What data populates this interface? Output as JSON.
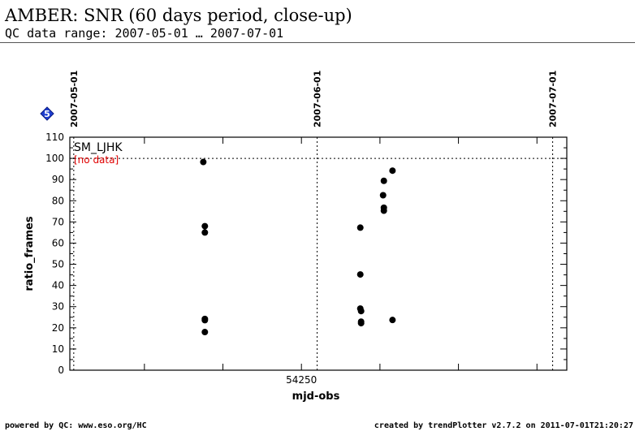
{
  "header": {
    "title": "AMBER: SNR (60 days period, close-up)",
    "subtitle": "QC data range: 2007-05-01 … 2007-07-01"
  },
  "footer": {
    "left": "powered by QC: www.eso.org/HC",
    "right": "created by trendPlotter v2.7.2 on 2011-07-01T21:20:27"
  },
  "badge": {
    "label": "5",
    "color": "#1f3fd0"
  },
  "chart_data": {
    "type": "scatter",
    "xlabel": "mjd-obs",
    "ylabel": "ratio_frames",
    "xlim": [
      54220.5,
      54283.8
    ],
    "ylim": [
      0,
      110
    ],
    "x_tick_labels": [
      {
        "x": 54250,
        "label": "54250"
      }
    ],
    "y_ticks": [
      0,
      10,
      20,
      30,
      40,
      50,
      60,
      70,
      80,
      90,
      100,
      110
    ],
    "reference_line": {
      "y": 100,
      "style": "dotted"
    },
    "date_markers": [
      {
        "x": 54221,
        "label": "2007-05-01"
      },
      {
        "x": 54252,
        "label": "2007-06-01"
      },
      {
        "x": 54282,
        "label": "2007-07-01"
      }
    ],
    "legend": {
      "name": "SM_LJHK",
      "status": "[no data]",
      "status_color": "#e00000",
      "position": "top-left"
    },
    "marker_color": "#000000",
    "grid": false,
    "series": [
      {
        "points": [
          {
            "x": 54237.5,
            "y": 98.3
          },
          {
            "x": 54237.7,
            "y": 68.0
          },
          {
            "x": 54237.7,
            "y": 65.0
          },
          {
            "x": 54237.7,
            "y": 24.2
          },
          {
            "x": 54237.7,
            "y": 23.6
          },
          {
            "x": 54237.7,
            "y": 18.0
          },
          {
            "x": 54257.5,
            "y": 67.3
          },
          {
            "x": 54257.5,
            "y": 45.2
          },
          {
            "x": 54257.5,
            "y": 29.1
          },
          {
            "x": 54257.6,
            "y": 27.9
          },
          {
            "x": 54257.6,
            "y": 22.9
          },
          {
            "x": 54257.6,
            "y": 22.2
          },
          {
            "x": 54260.5,
            "y": 89.4
          },
          {
            "x": 54260.4,
            "y": 82.6
          },
          {
            "x": 54260.5,
            "y": 76.7
          },
          {
            "x": 54260.5,
            "y": 75.3
          },
          {
            "x": 54261.6,
            "y": 94.2
          },
          {
            "x": 54261.6,
            "y": 23.7
          }
        ]
      }
    ]
  }
}
